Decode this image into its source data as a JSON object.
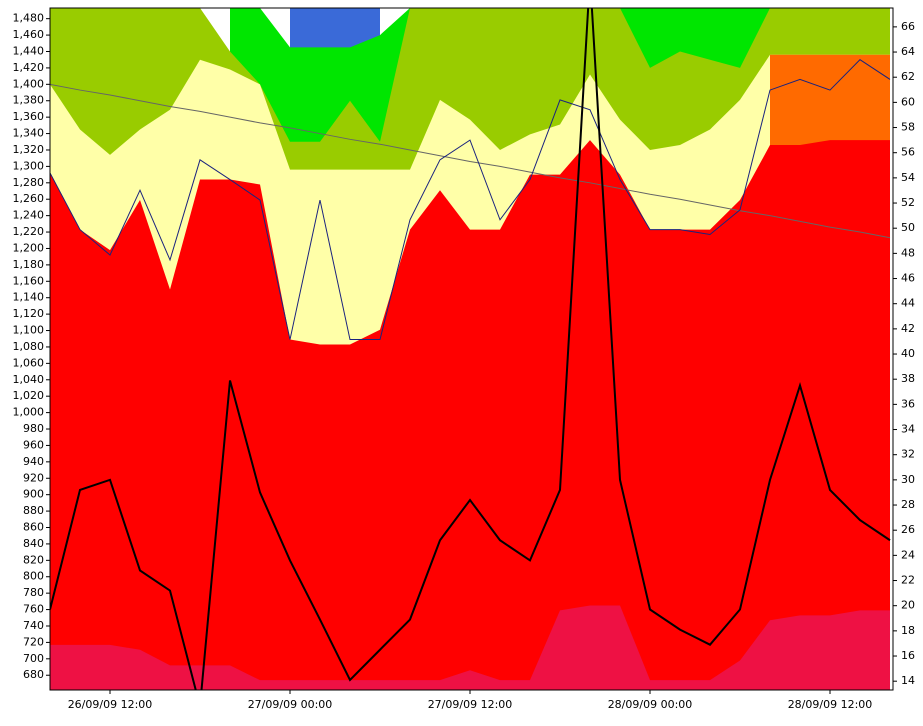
{
  "chart_data": {
    "type": "area",
    "x": [
      8,
      10,
      12,
      14,
      16,
      18,
      20,
      22,
      24,
      26,
      28,
      30,
      32,
      34,
      36,
      38,
      40,
      42,
      44,
      46,
      48,
      50,
      52,
      54,
      56,
      58,
      60,
      62,
      64
    ],
    "xlim": [
      8,
      64.2
    ],
    "xticks": [
      {
        "value": 12,
        "label": "26/09/09 12:00"
      },
      {
        "value": 24,
        "label": "27/09/09 00:00"
      },
      {
        "value": 36,
        "label": "27/09/09 12:00"
      },
      {
        "value": 48,
        "label": "28/09/09 00:00"
      },
      {
        "value": 60,
        "label": "28/09/09 12:00"
      }
    ],
    "ylim": [
      662,
      1493
    ],
    "yticks": [
      680,
      700,
      720,
      740,
      760,
      780,
      800,
      820,
      840,
      860,
      880,
      900,
      920,
      940,
      960,
      980,
      {
        "value": 1000,
        "label": "1,000"
      },
      {
        "value": 1020,
        "label": "1,020"
      },
      {
        "value": 1040,
        "label": "1,040"
      },
      {
        "value": 1060,
        "label": "1,060"
      },
      {
        "value": 1080,
        "label": "1,080"
      },
      {
        "value": 1100,
        "label": "1,100"
      },
      {
        "value": 1120,
        "label": "1,120"
      },
      {
        "value": 1140,
        "label": "1,140"
      },
      {
        "value": 1160,
        "label": "1,160"
      },
      {
        "value": 1180,
        "label": "1,180"
      },
      {
        "value": 1200,
        "label": "1,200"
      },
      {
        "value": 1220,
        "label": "1,220"
      },
      {
        "value": 1240,
        "label": "1,240"
      },
      {
        "value": 1260,
        "label": "1,260"
      },
      {
        "value": 1280,
        "label": "1,280"
      },
      {
        "value": 1300,
        "label": "1,300"
      },
      {
        "value": 1320,
        "label": "1,320"
      },
      {
        "value": 1340,
        "label": "1,340"
      },
      {
        "value": 1360,
        "label": "1,360"
      },
      {
        "value": 1380,
        "label": "1,380"
      },
      {
        "value": 1400,
        "label": "1,400"
      },
      {
        "value": 1420,
        "label": "1,420"
      },
      {
        "value": 1440,
        "label": "1,440"
      },
      {
        "value": 1460,
        "label": "1,460"
      },
      {
        "value": 1480,
        "label": "1,480"
      }
    ],
    "y2lim": [
      13.3,
      67.5
    ],
    "y2ticks": [
      14,
      16,
      18,
      20,
      22,
      24,
      26,
      28,
      30,
      32,
      34,
      36,
      38,
      40,
      42,
      44,
      46,
      48,
      50,
      52,
      54,
      56,
      58,
      60,
      62,
      64,
      66
    ],
    "series": [
      {
        "type": "area",
        "color": "#3a6ad8",
        "values": [
          null,
          null,
          null,
          null,
          null,
          null,
          null,
          null,
          1493,
          1493,
          1493,
          1493,
          null,
          null,
          null,
          null,
          null,
          null,
          null,
          null,
          null,
          null,
          null,
          null,
          null,
          null,
          null,
          null,
          null
        ]
      },
      {
        "type": "area",
        "color": "#00e600",
        "values": [
          null,
          null,
          null,
          null,
          null,
          null,
          1493,
          1493,
          1445,
          1445,
          1445,
          1460,
          1493,
          null,
          null,
          null,
          null,
          null,
          null,
          1493,
          1493,
          1493,
          1493,
          1493,
          1493,
          null,
          null,
          null,
          null
        ]
      },
      {
        "type": "area",
        "color": "#99cc00",
        "values": [
          1493,
          1493,
          1493,
          1493,
          1493,
          1493,
          1440,
          1400,
          1330,
          1330,
          1380,
          1330,
          1493,
          1493,
          1493,
          1493,
          1493,
          1493,
          1493,
          1493,
          1420,
          1440,
          1430,
          1420,
          1493,
          1493,
          1493,
          1493,
          1493
        ]
      },
      {
        "type": "area",
        "color": "#ffffa8",
        "values": [
          1400,
          1345,
          1314,
          1345,
          1369,
          1430,
          1418,
          1400,
          1296,
          1296,
          1296,
          1296,
          1296,
          1381,
          1357,
          1320,
          1339,
          1351,
          1412,
          1357,
          1320,
          1326,
          1345,
          1381,
          1436,
          1436,
          1436,
          1436,
          1436
        ]
      },
      {
        "type": "area",
        "color": "#ff6a00",
        "values": [
          null,
          null,
          null,
          null,
          null,
          null,
          null,
          null,
          null,
          null,
          null,
          null,
          null,
          null,
          null,
          null,
          null,
          null,
          null,
          null,
          null,
          null,
          null,
          null,
          1436,
          1436,
          1436,
          1436,
          1436
        ]
      },
      {
        "type": "area",
        "color": "#ff0000",
        "values": [
          1293,
          1223,
          1198,
          1259,
          1150,
          1284,
          1284,
          1278,
          1089,
          1083,
          1083,
          1101,
          1223,
          1271,
          1223,
          1223,
          1290,
          1290,
          1332,
          1290,
          1223,
          1223,
          1223,
          1259,
          1326,
          1326,
          1332,
          1332,
          1332
        ]
      },
      {
        "type": "area",
        "color": "#ee1144",
        "values": [
          717,
          717,
          717,
          711,
          692,
          692,
          692,
          674,
          674,
          674,
          674,
          674,
          674,
          674,
          686,
          674,
          674,
          759,
          765,
          765,
          674,
          674,
          674,
          698,
          747,
          753,
          753,
          759,
          759
        ]
      },
      {
        "type": "line",
        "color": "#666666",
        "values": [
          1400,
          1393,
          1387,
          1380,
          1373,
          1367,
          1360,
          1353,
          1347,
          1340,
          1333,
          1327,
          1320,
          1313,
          1306,
          1300,
          1293,
          1286,
          1280,
          1273,
          1266,
          1260,
          1253,
          1246,
          1240,
          1233,
          1226,
          1220,
          1213
        ]
      },
      {
        "type": "line",
        "color": "#1a237e",
        "values": [
          1292,
          1223,
          1192,
          1271,
          1186,
          1308,
          1284,
          1259,
          1089,
          1259,
          1089,
          1089,
          1235,
          1308,
          1332,
          1235,
          1284,
          1381,
          1369,
          1284,
          1223,
          1223,
          1217,
          1247,
          1393,
          1406,
          1393,
          1430,
          1406
        ]
      },
      {
        "type": "line",
        "axis": "y2",
        "color": "#000000",
        "width": 2,
        "values": [
          19.7,
          29.2,
          30.0,
          22.8,
          21.2,
          12,
          37.9,
          29,
          23.6,
          18.9,
          14.1,
          16.5,
          18.9,
          25.2,
          28.4,
          25.2,
          23.6,
          29.2,
          70,
          30.0,
          19.7,
          18.1,
          16.9,
          19.7,
          30.0,
          37.5,
          29.2,
          26.8,
          25.2
        ]
      }
    ]
  }
}
